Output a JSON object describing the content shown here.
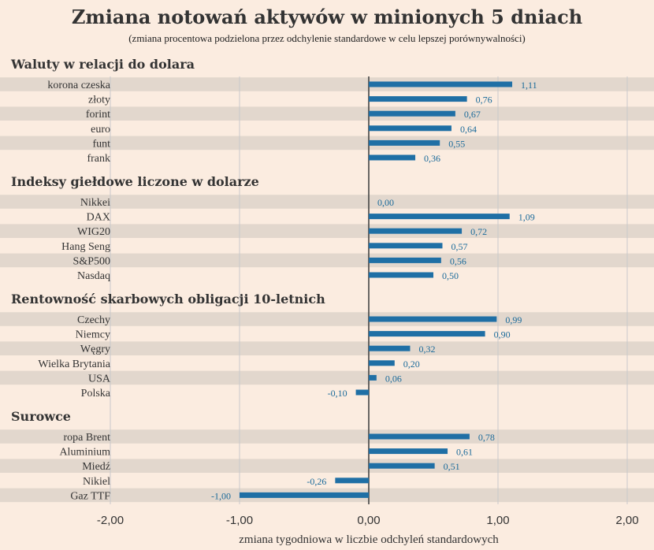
{
  "chart_data": {
    "type": "bar",
    "orientation": "horizontal",
    "title": "Zmiana notowań aktywów w minionych 5 dniach",
    "subtitle": "(zmiana procentowa podzielona przez odchylenie standardowe w celu lepszej porównywalności)",
    "xlabel": "zmiana tygodniowa w liczbie odchyleń standardowych",
    "xlim": [
      -2.2,
      2.2
    ],
    "ticks": [
      -2,
      -1,
      0,
      1,
      2
    ],
    "tick_labels": [
      "-2,00",
      "-1,00",
      "0,00",
      "1,00",
      "2,00"
    ],
    "grid": true,
    "bar_color": "#1f6fa5",
    "groups": [
      {
        "name": "Waluty w relacji do dolara",
        "categories": [
          "korona czeska",
          "złoty",
          "forint",
          "euro",
          "funt",
          "frank"
        ],
        "values": [
          1.11,
          0.76,
          0.67,
          0.64,
          0.55,
          0.36
        ],
        "value_labels": [
          "1,11",
          "0,76",
          "0,67",
          "0,64",
          "0,55",
          "0,36"
        ]
      },
      {
        "name": "Indeksy giełdowe liczone w dolarze",
        "categories": [
          "Nikkei",
          "DAX",
          "WIG20",
          "Hang Seng",
          "S&P500",
          "Nasdaq"
        ],
        "values": [
          0.0,
          1.09,
          0.72,
          0.57,
          0.56,
          0.5
        ],
        "value_labels": [
          "0,00",
          "1,09",
          "0,72",
          "0,57",
          "0,56",
          "0,50"
        ]
      },
      {
        "name": "Rentowność skarbowych obligacji 10-letnich",
        "categories": [
          "Czechy",
          "Niemcy",
          "Węgry",
          "Wielka Brytania",
          "USA",
          "Polska"
        ],
        "values": [
          0.99,
          0.9,
          0.32,
          0.2,
          0.06,
          -0.1
        ],
        "value_labels": [
          "0,99",
          "0,90",
          "0,32",
          "0,20",
          "0,06",
          "-0,10"
        ]
      },
      {
        "name": "Surowce",
        "categories": [
          "ropa Brent",
          "Aluminium",
          "Miedź",
          "Nikiel",
          "Gaz TTF"
        ],
        "values": [
          0.78,
          0.61,
          0.51,
          -0.26,
          -1.0
        ],
        "value_labels": [
          "0,78",
          "0,61",
          "0,51",
          "-0,26",
          "-1,00"
        ]
      }
    ]
  }
}
